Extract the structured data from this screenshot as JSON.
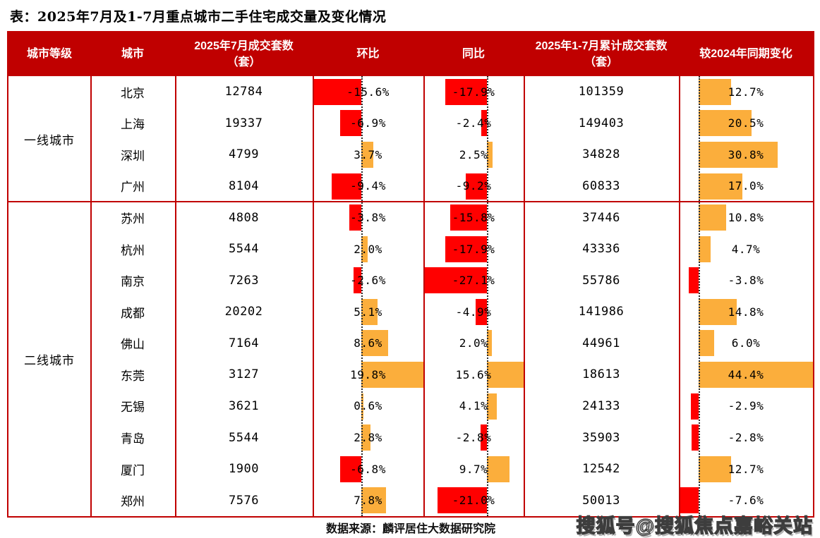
{
  "page": {
    "title": "表：2025年7月及1-7月重点城市二手住宅成交量及变化情况",
    "source": "数据来源：麟评居住大数据研究院",
    "watermark": "搜狐号@搜狐焦点嘉峪关站"
  },
  "colors": {
    "header_bg": "#C00000",
    "table_border": "#C00000",
    "negative_bar": "#FF0000",
    "positive_bar": "#FBAE3C",
    "axis_line": "#2A2A2A",
    "header_text": "#FFFFFF",
    "body_text": "#000000"
  },
  "chart_data": {
    "type": "table",
    "title": "2025年7月及1-7月重点城市二手住宅成交量及变化情况",
    "columns": [
      {
        "label": "城市等级"
      },
      {
        "label": "城市"
      },
      {
        "label": "2025年7月成交套数（套）"
      },
      {
        "label": "环比"
      },
      {
        "label": "同比"
      },
      {
        "label": "2025年1-7月累计成交套数（套）"
      },
      {
        "label": "较2024年同期变化"
      }
    ],
    "bar_columns_note": "环比 / 同比 / 较2024年同期变化 are in-cell data bars; red = negative, orange = positive, dotted line = zero axis auto-scaled to column min/max",
    "groups": [
      {
        "label": "一线城市",
        "start": 0,
        "end": 3
      },
      {
        "label": "二线城市",
        "start": 4,
        "end": 13
      }
    ],
    "rows": [
      {
        "tier": "一线城市",
        "city": "北京",
        "jul_2025_units": 12784,
        "mom_pct": -15.6,
        "yoy_pct": -17.9,
        "jan_jul_2025_units": 101359,
        "vs_2024_pct": 12.7
      },
      {
        "tier": "一线城市",
        "city": "上海",
        "jul_2025_units": 19337,
        "mom_pct": -6.9,
        "yoy_pct": -2.4,
        "jan_jul_2025_units": 149403,
        "vs_2024_pct": 20.5
      },
      {
        "tier": "一线城市",
        "city": "深圳",
        "jul_2025_units": 4799,
        "mom_pct": 3.7,
        "yoy_pct": 2.5,
        "jan_jul_2025_units": 34828,
        "vs_2024_pct": 30.8
      },
      {
        "tier": "一线城市",
        "city": "广州",
        "jul_2025_units": 8104,
        "mom_pct": -9.4,
        "yoy_pct": -9.2,
        "jan_jul_2025_units": 60833,
        "vs_2024_pct": 17.0
      },
      {
        "tier": "二线城市",
        "city": "苏州",
        "jul_2025_units": 4808,
        "mom_pct": -3.8,
        "yoy_pct": -15.8,
        "jan_jul_2025_units": 37446,
        "vs_2024_pct": 10.8
      },
      {
        "tier": "二线城市",
        "city": "杭州",
        "jul_2025_units": 5544,
        "mom_pct": 2.0,
        "yoy_pct": -17.9,
        "jan_jul_2025_units": 43336,
        "vs_2024_pct": 4.7
      },
      {
        "tier": "二线城市",
        "city": "南京",
        "jul_2025_units": 7263,
        "mom_pct": -2.6,
        "yoy_pct": -27.1,
        "jan_jul_2025_units": 55786,
        "vs_2024_pct": -3.8
      },
      {
        "tier": "二线城市",
        "city": "成都",
        "jul_2025_units": 20202,
        "mom_pct": 5.1,
        "yoy_pct": -4.9,
        "jan_jul_2025_units": 141986,
        "vs_2024_pct": 14.8
      },
      {
        "tier": "二线城市",
        "city": "佛山",
        "jul_2025_units": 7164,
        "mom_pct": 8.6,
        "yoy_pct": 2.0,
        "jan_jul_2025_units": 44961,
        "vs_2024_pct": 6.0
      },
      {
        "tier": "二线城市",
        "city": "东莞",
        "jul_2025_units": 3127,
        "mom_pct": 19.8,
        "yoy_pct": 15.6,
        "jan_jul_2025_units": 18613,
        "vs_2024_pct": 44.4
      },
      {
        "tier": "二线城市",
        "city": "无锡",
        "jul_2025_units": 3621,
        "mom_pct": 0.6,
        "yoy_pct": 4.1,
        "jan_jul_2025_units": 24133,
        "vs_2024_pct": -2.9
      },
      {
        "tier": "二线城市",
        "city": "青岛",
        "jul_2025_units": 5544,
        "mom_pct": 2.8,
        "yoy_pct": -2.8,
        "jan_jul_2025_units": 35903,
        "vs_2024_pct": -2.8
      },
      {
        "tier": "二线城市",
        "city": "厦门",
        "jul_2025_units": 1900,
        "mom_pct": -6.8,
        "yoy_pct": 9.7,
        "jan_jul_2025_units": 12542,
        "vs_2024_pct": 12.7
      },
      {
        "tier": "二线城市",
        "city": "郑州",
        "jul_2025_units": 7576,
        "mom_pct": 7.8,
        "yoy_pct": -21.0,
        "jan_jul_2025_units": 50013,
        "vs_2024_pct": -7.6
      }
    ]
  }
}
